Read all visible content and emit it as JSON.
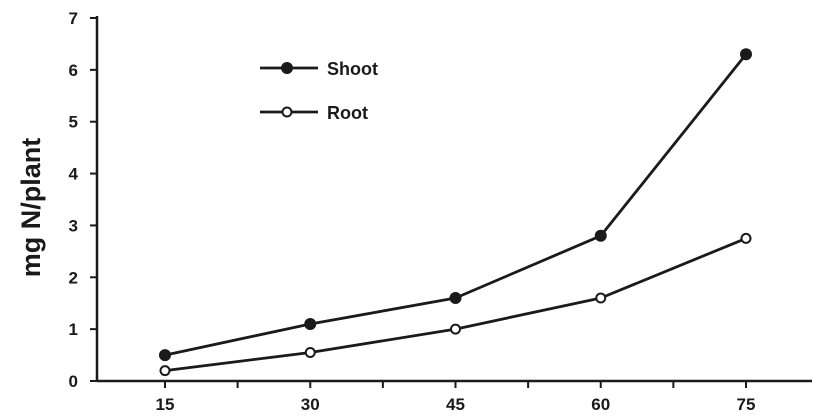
{
  "chart_data": {
    "type": "line",
    "title": "",
    "xlabel": "",
    "ylabel": "mg N/plant",
    "x": [
      15,
      30,
      45,
      60,
      75
    ],
    "xtick_labels": [
      "15",
      "30",
      "45",
      "60",
      "75"
    ],
    "ylim": [
      0,
      7
    ],
    "ytick_labels": [
      "0",
      "1",
      "2",
      "3",
      "4",
      "5",
      "6",
      "7"
    ],
    "series": [
      {
        "name": "Shoot",
        "marker": "filled-circle",
        "values": [
          0.5,
          1.1,
          1.6,
          2.8,
          6.3
        ]
      },
      {
        "name": "Root",
        "marker": "open-circle",
        "values": [
          0.2,
          0.55,
          1.0,
          1.6,
          2.75
        ]
      }
    ],
    "legend": {
      "position": "top-left",
      "entries": [
        "Shoot",
        "Root"
      ]
    },
    "grid": false,
    "color": "#1a1a1a"
  }
}
